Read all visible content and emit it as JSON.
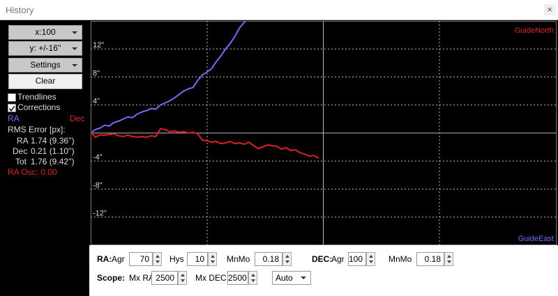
{
  "window": {
    "title": "History",
    "close": "×"
  },
  "buttons": {
    "x_scale": "x:100",
    "y_scale": "y: +/-16''",
    "settings": "Settings",
    "clear": "Clear"
  },
  "checkboxes": [
    {
      "label": "Trendlines",
      "checked": false
    },
    {
      "label": "Corrections",
      "checked": true
    }
  ],
  "stats": {
    "heading": "RMS Error [px]:",
    "rows": [
      {
        "label": "RA",
        "value": "1.74 (9.36'')"
      },
      {
        "label": "Dec",
        "value": "0.21 (1.10'')"
      },
      {
        "label": "Tot",
        "value": "1.76 (9.42'')"
      }
    ],
    "osc": "RA Osc: 0.00"
  },
  "chart_data": {
    "type": "line",
    "north_label": "GuideNorth",
    "east_label": "GuideEast",
    "xlim": [
      0,
      100
    ],
    "ylim": [
      -16,
      16
    ],
    "yticks": [
      {
        "value": 12,
        "label": "12\""
      },
      {
        "value": 8,
        "label": "8\""
      },
      {
        "value": 4,
        "label": "4\""
      },
      {
        "value": -4,
        "label": "-4\""
      },
      {
        "value": -8,
        "label": "-8\""
      },
      {
        "value": -12,
        "label": "-12\""
      }
    ],
    "series": [
      {
        "name": "RA",
        "color": "#6f6fff",
        "values": [
          0,
          0.5,
          0.7,
          1.1,
          1.0,
          1.5,
          1.7,
          2.0,
          2.3,
          2.2,
          2.7,
          3.0,
          3.2,
          3.5,
          3.4,
          4.0,
          4.3,
          4.6,
          5.0,
          5.5,
          6.0,
          6.3,
          6.5,
          7.5,
          8.3,
          8.7,
          9.2,
          10.2,
          11.0,
          12.0,
          12.8,
          13.8,
          15.0,
          15.8,
          16.3
        ]
      },
      {
        "name": "Dec",
        "color": "#e02020",
        "values": [
          0.2,
          -0.6,
          -0.3,
          -0.3,
          -0.2,
          -0.1,
          -0.4,
          -0.5,
          -0.3,
          -0.5,
          -0.6,
          -0.5,
          -0.6,
          -0.4,
          -0.5,
          0.6,
          0.5,
          0.2,
          0.3,
          0.1,
          0.2,
          0.0,
          0.1,
          -0.1,
          -1.0,
          -1.1,
          -1.3,
          -1.2,
          -1.5,
          -1.4,
          -1.2,
          -1.5,
          -1.4,
          -1.6,
          -1.3,
          -1.8,
          -2.2,
          -2.0,
          -1.7,
          -1.8,
          -1.9,
          -2.3,
          -2.1,
          -2.5,
          -2.4,
          -2.8,
          -3.0,
          -3.3,
          -3.2,
          -3.6
        ]
      }
    ]
  },
  "controls": {
    "ra": {
      "label": "RA:",
      "agr_label": "Agr",
      "agr": 70,
      "hys_label": "Hys",
      "hys": 10,
      "mnmo_label": "MnMo",
      "mnmo": 0.18
    },
    "dec": {
      "label": "DEC:",
      "agr_label": "Agr",
      "agr": 100,
      "mnmo_label": "MnMo",
      "mnmo": 0.18
    },
    "scope": {
      "label": "Scope:",
      "mxra_label": "Mx RA",
      "mxra": 2500,
      "mxdec_label": "Mx DEC",
      "mxdec": 2500,
      "mode": "Auto"
    }
  }
}
